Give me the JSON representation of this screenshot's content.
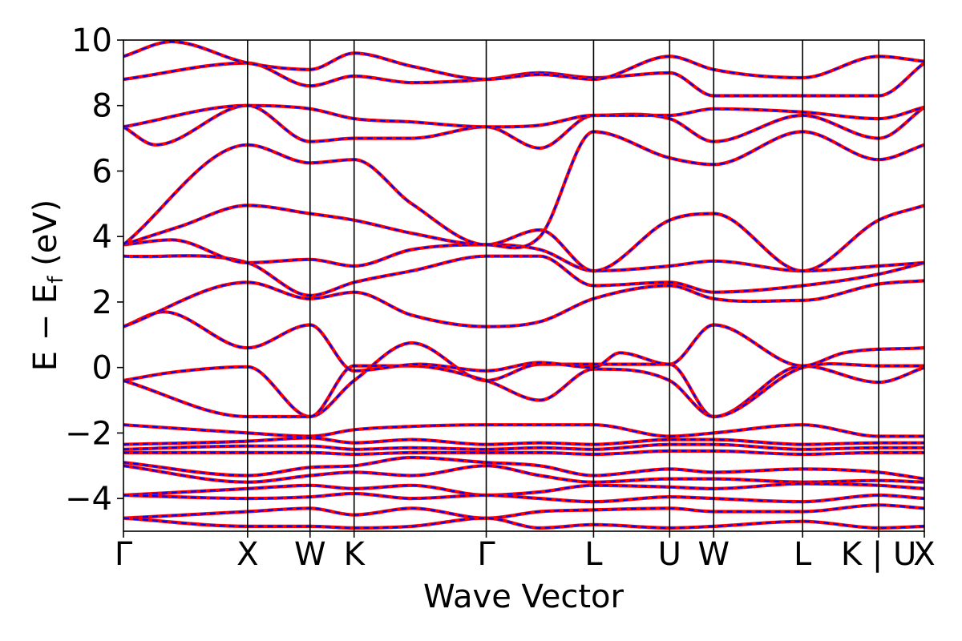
{
  "chart_data": {
    "type": "line",
    "title": "",
    "xlabel": "Wave Vector",
    "ylabel": "E − E_f (eV)",
    "ylabel_parts": {
      "main": "E − E",
      "sub": "f",
      "unit": " (eV)"
    },
    "ylim": [
      -5,
      10
    ],
    "yticks": [
      -4,
      -2,
      0,
      2,
      4,
      6,
      8,
      10
    ],
    "ytick_labels": [
      "−4",
      "−2",
      "0",
      "2",
      "4",
      "6",
      "8",
      "10"
    ],
    "grid": false,
    "legend": "none",
    "high_symmetry_points": [
      {
        "label": "Γ",
        "x": 0.0
      },
      {
        "label": "X",
        "x": 0.155
      },
      {
        "label": "W",
        "x": 0.233
      },
      {
        "label": "K",
        "x": 0.288
      },
      {
        "label": "Γ",
        "x": 0.453
      },
      {
        "label": "L",
        "x": 0.587
      },
      {
        "label": "U",
        "x": 0.682
      },
      {
        "label": "W",
        "x": 0.737
      },
      {
        "label": "L",
        "x": 0.848
      },
      {
        "label": "K | U",
        "x": 0.943
      },
      {
        "label": "X",
        "x": 1.0
      }
    ],
    "series_colors": {
      "solid": "#ff0000",
      "dashed": "#0000ff"
    },
    "series": [
      {
        "values": [
          [
            0,
            -0.4
          ],
          [
            0.06,
            -0.15
          ],
          [
            0.155,
            0.02
          ],
          [
            0.233,
            -1.5
          ],
          [
            0.288,
            -0.4
          ],
          [
            0.36,
            0.75
          ],
          [
            0.453,
            -0.4
          ],
          [
            0.52,
            0.1
          ],
          [
            0.587,
            0.1
          ],
          [
            0.682,
            0.1
          ],
          [
            0.737,
            -1.5
          ],
          [
            0.848,
            0.05
          ],
          [
            0.943,
            -0.45
          ],
          [
            1.0,
            0.0
          ]
        ]
      },
      {
        "values": [
          [
            0,
            -0.4
          ],
          [
            0.155,
            -1.5
          ],
          [
            0.233,
            -1.5
          ],
          [
            0.288,
            0.05
          ],
          [
            0.36,
            0.05
          ],
          [
            0.453,
            -0.4
          ],
          [
            0.52,
            -1.0
          ],
          [
            0.587,
            -0.05
          ],
          [
            0.682,
            -0.4
          ],
          [
            0.737,
            -1.5
          ],
          [
            0.848,
            0.0
          ],
          [
            0.943,
            0.05
          ],
          [
            1.0,
            0.05
          ]
        ]
      },
      {
        "values": [
          [
            0,
            1.25
          ],
          [
            0.05,
            1.7
          ],
          [
            0.155,
            0.6
          ],
          [
            0.233,
            1.3
          ],
          [
            0.288,
            -0.1
          ],
          [
            0.37,
            0.1
          ],
          [
            0.453,
            -0.1
          ],
          [
            0.52,
            0.15
          ],
          [
            0.587,
            0.0
          ],
          [
            0.62,
            0.45
          ],
          [
            0.682,
            0.1
          ],
          [
            0.737,
            1.3
          ],
          [
            0.848,
            0.05
          ],
          [
            0.9,
            0.45
          ],
          [
            1.0,
            0.6
          ]
        ]
      },
      {
        "values": [
          [
            0,
            1.25
          ],
          [
            0.155,
            2.6
          ],
          [
            0.233,
            2.1
          ],
          [
            0.288,
            2.3
          ],
          [
            0.36,
            1.6
          ],
          [
            0.453,
            1.25
          ],
          [
            0.52,
            1.4
          ],
          [
            0.587,
            2.1
          ],
          [
            0.682,
            2.5
          ],
          [
            0.737,
            2.1
          ],
          [
            0.848,
            2.05
          ],
          [
            0.943,
            2.55
          ],
          [
            1.0,
            2.65
          ]
        ]
      },
      {
        "values": [
          [
            0,
            3.4
          ],
          [
            0.155,
            3.2
          ],
          [
            0.233,
            2.2
          ],
          [
            0.288,
            2.6
          ],
          [
            0.36,
            2.95
          ],
          [
            0.453,
            3.4
          ],
          [
            0.52,
            3.4
          ],
          [
            0.587,
            2.5
          ],
          [
            0.682,
            2.6
          ],
          [
            0.737,
            2.3
          ],
          [
            0.848,
            2.5
          ],
          [
            0.943,
            2.85
          ],
          [
            1.0,
            3.2
          ]
        ]
      },
      {
        "values": [
          [
            0,
            3.75
          ],
          [
            0.06,
            3.9
          ],
          [
            0.155,
            3.2
          ],
          [
            0.233,
            3.3
          ],
          [
            0.288,
            3.1
          ],
          [
            0.36,
            3.6
          ],
          [
            0.453,
            3.75
          ],
          [
            0.52,
            3.6
          ],
          [
            0.587,
            2.95
          ],
          [
            0.682,
            3.1
          ],
          [
            0.737,
            3.25
          ],
          [
            0.848,
            2.95
          ],
          [
            0.943,
            3.1
          ],
          [
            1.0,
            3.2
          ]
        ]
      },
      {
        "values": [
          [
            0,
            3.75
          ],
          [
            0.07,
            4.3
          ],
          [
            0.155,
            4.95
          ],
          [
            0.233,
            4.7
          ],
          [
            0.288,
            4.5
          ],
          [
            0.36,
            4.1
          ],
          [
            0.453,
            3.75
          ],
          [
            0.52,
            4.2
          ],
          [
            0.587,
            2.95
          ],
          [
            0.682,
            4.5
          ],
          [
            0.737,
            4.7
          ],
          [
            0.848,
            2.95
          ],
          [
            0.943,
            4.5
          ],
          [
            1.0,
            4.95
          ]
        ]
      },
      {
        "values": [
          [
            0,
            3.75
          ],
          [
            0.155,
            6.8
          ],
          [
            0.233,
            6.25
          ],
          [
            0.288,
            6.35
          ],
          [
            0.36,
            5.0
          ],
          [
            0.453,
            3.75
          ],
          [
            0.52,
            4.0
          ],
          [
            0.587,
            7.2
          ],
          [
            0.682,
            6.4
          ],
          [
            0.737,
            6.2
          ],
          [
            0.848,
            7.2
          ],
          [
            0.943,
            6.35
          ],
          [
            1.0,
            6.8
          ]
        ]
      },
      {
        "values": [
          [
            0,
            7.35
          ],
          [
            0.04,
            6.8
          ],
          [
            0.155,
            8.0
          ],
          [
            0.233,
            6.9
          ],
          [
            0.288,
            7.0
          ],
          [
            0.36,
            7.0
          ],
          [
            0.453,
            7.35
          ],
          [
            0.52,
            6.7
          ],
          [
            0.587,
            7.7
          ],
          [
            0.682,
            7.6
          ],
          [
            0.737,
            6.9
          ],
          [
            0.848,
            7.7
          ],
          [
            0.943,
            7.0
          ],
          [
            1.0,
            7.95
          ]
        ]
      },
      {
        "values": [
          [
            0,
            7.35
          ],
          [
            0.155,
            8.0
          ],
          [
            0.233,
            7.9
          ],
          [
            0.288,
            7.6
          ],
          [
            0.36,
            7.5
          ],
          [
            0.453,
            7.35
          ],
          [
            0.52,
            7.4
          ],
          [
            0.587,
            7.7
          ],
          [
            0.682,
            7.7
          ],
          [
            0.737,
            7.9
          ],
          [
            0.848,
            7.8
          ],
          [
            0.943,
            7.6
          ],
          [
            1.0,
            7.95
          ]
        ]
      },
      {
        "values": [
          [
            0,
            8.8
          ],
          [
            0.155,
            9.3
          ],
          [
            0.233,
            8.6
          ],
          [
            0.288,
            8.9
          ],
          [
            0.36,
            8.7
          ],
          [
            0.453,
            8.8
          ],
          [
            0.52,
            9.0
          ],
          [
            0.587,
            8.85
          ],
          [
            0.682,
            9.0
          ],
          [
            0.737,
            8.3
          ],
          [
            0.848,
            8.3
          ],
          [
            0.943,
            8.3
          ],
          [
            1.0,
            9.3
          ]
        ]
      },
      {
        "values": [
          [
            0,
            9.5
          ],
          [
            0.06,
            9.95
          ],
          [
            0.155,
            9.3
          ],
          [
            0.233,
            9.1
          ],
          [
            0.288,
            9.6
          ],
          [
            0.36,
            9.2
          ],
          [
            0.453,
            8.8
          ],
          [
            0.52,
            8.95
          ],
          [
            0.587,
            8.8
          ],
          [
            0.682,
            9.5
          ],
          [
            0.737,
            9.1
          ],
          [
            0.848,
            8.85
          ],
          [
            0.943,
            9.5
          ],
          [
            1.0,
            9.35
          ]
        ]
      },
      {
        "values": [
          [
            0,
            -1.75
          ],
          [
            0.155,
            -2.0
          ],
          [
            0.233,
            -2.1
          ],
          [
            0.288,
            -1.9
          ],
          [
            0.36,
            -1.8
          ],
          [
            0.453,
            -1.75
          ],
          [
            0.52,
            -1.75
          ],
          [
            0.587,
            -1.75
          ],
          [
            0.682,
            -2.1
          ],
          [
            0.737,
            -2.0
          ],
          [
            0.848,
            -1.75
          ],
          [
            0.943,
            -2.1
          ],
          [
            1.0,
            -2.1
          ]
        ]
      },
      {
        "values": [
          [
            0,
            -2.35
          ],
          [
            0.155,
            -2.25
          ],
          [
            0.233,
            -2.15
          ],
          [
            0.288,
            -2.3
          ],
          [
            0.36,
            -2.2
          ],
          [
            0.453,
            -2.35
          ],
          [
            0.52,
            -2.3
          ],
          [
            0.587,
            -2.35
          ],
          [
            0.682,
            -2.2
          ],
          [
            0.737,
            -2.2
          ],
          [
            0.848,
            -2.35
          ],
          [
            0.943,
            -2.3
          ],
          [
            1.0,
            -2.3
          ]
        ]
      },
      {
        "values": [
          [
            0,
            -2.5
          ],
          [
            0.155,
            -2.4
          ],
          [
            0.233,
            -2.4
          ],
          [
            0.288,
            -2.5
          ],
          [
            0.36,
            -2.45
          ],
          [
            0.453,
            -2.5
          ],
          [
            0.52,
            -2.45
          ],
          [
            0.587,
            -2.5
          ],
          [
            0.682,
            -2.35
          ],
          [
            0.737,
            -2.35
          ],
          [
            0.848,
            -2.5
          ],
          [
            0.943,
            -2.45
          ],
          [
            1.0,
            -2.45
          ]
        ]
      },
      {
        "values": [
          [
            0,
            -2.6
          ],
          [
            0.155,
            -2.6
          ],
          [
            0.233,
            -2.6
          ],
          [
            0.288,
            -2.65
          ],
          [
            0.36,
            -2.6
          ],
          [
            0.453,
            -2.6
          ],
          [
            0.52,
            -2.6
          ],
          [
            0.587,
            -2.65
          ],
          [
            0.682,
            -2.55
          ],
          [
            0.737,
            -2.55
          ],
          [
            0.848,
            -2.65
          ],
          [
            0.943,
            -2.6
          ],
          [
            1.0,
            -2.6
          ]
        ]
      },
      {
        "values": [
          [
            0,
            -2.9
          ],
          [
            0.155,
            -3.3
          ],
          [
            0.233,
            -3.05
          ],
          [
            0.288,
            -3.0
          ],
          [
            0.36,
            -2.75
          ],
          [
            0.453,
            -2.9
          ],
          [
            0.52,
            -3.0
          ],
          [
            0.587,
            -3.3
          ],
          [
            0.682,
            -3.1
          ],
          [
            0.737,
            -3.2
          ],
          [
            0.848,
            -3.1
          ],
          [
            0.943,
            -3.2
          ],
          [
            1.0,
            -3.4
          ]
        ]
      },
      {
        "values": [
          [
            0,
            -3.0
          ],
          [
            0.155,
            -3.5
          ],
          [
            0.233,
            -3.3
          ],
          [
            0.288,
            -3.2
          ],
          [
            0.36,
            -3.3
          ],
          [
            0.453,
            -3.0
          ],
          [
            0.52,
            -3.3
          ],
          [
            0.587,
            -3.5
          ],
          [
            0.682,
            -3.4
          ],
          [
            0.737,
            -3.4
          ],
          [
            0.848,
            -3.5
          ],
          [
            0.943,
            -3.45
          ],
          [
            1.0,
            -3.5
          ]
        ]
      },
      {
        "values": [
          [
            0,
            -3.9
          ],
          [
            0.155,
            -3.7
          ],
          [
            0.233,
            -3.6
          ],
          [
            0.288,
            -3.7
          ],
          [
            0.36,
            -3.6
          ],
          [
            0.453,
            -3.9
          ],
          [
            0.52,
            -3.8
          ],
          [
            0.587,
            -3.6
          ],
          [
            0.682,
            -3.65
          ],
          [
            0.737,
            -3.7
          ],
          [
            0.848,
            -3.55
          ],
          [
            0.943,
            -3.6
          ],
          [
            1.0,
            -3.7
          ]
        ]
      },
      {
        "values": [
          [
            0,
            -3.9
          ],
          [
            0.155,
            -4.0
          ],
          [
            0.233,
            -3.95
          ],
          [
            0.288,
            -3.85
          ],
          [
            0.36,
            -4.0
          ],
          [
            0.453,
            -3.9
          ],
          [
            0.52,
            -4.0
          ],
          [
            0.587,
            -4.1
          ],
          [
            0.682,
            -3.95
          ],
          [
            0.737,
            -4.0
          ],
          [
            0.848,
            -4.1
          ],
          [
            0.943,
            -3.9
          ],
          [
            1.0,
            -4.0
          ]
        ]
      },
      {
        "values": [
          [
            0,
            -4.6
          ],
          [
            0.155,
            -4.4
          ],
          [
            0.233,
            -4.3
          ],
          [
            0.288,
            -4.5
          ],
          [
            0.36,
            -4.3
          ],
          [
            0.453,
            -4.6
          ],
          [
            0.52,
            -4.4
          ],
          [
            0.587,
            -4.35
          ],
          [
            0.682,
            -4.3
          ],
          [
            0.737,
            -4.4
          ],
          [
            0.848,
            -4.4
          ],
          [
            0.943,
            -4.2
          ],
          [
            1.0,
            -4.3
          ]
        ]
      },
      {
        "values": [
          [
            0,
            -4.6
          ],
          [
            0.155,
            -4.85
          ],
          [
            0.233,
            -4.85
          ],
          [
            0.288,
            -4.9
          ],
          [
            0.36,
            -4.85
          ],
          [
            0.453,
            -4.6
          ],
          [
            0.52,
            -4.9
          ],
          [
            0.587,
            -4.8
          ],
          [
            0.682,
            -4.9
          ],
          [
            0.737,
            -4.85
          ],
          [
            0.848,
            -4.7
          ],
          [
            0.943,
            -4.9
          ],
          [
            1.0,
            -4.85
          ]
        ]
      }
    ]
  }
}
